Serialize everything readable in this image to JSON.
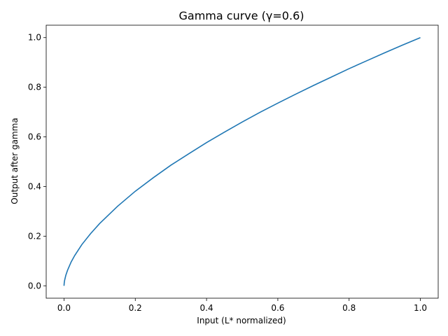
{
  "chart_data": {
    "type": "line",
    "title": "Gamma curve (γ=0.6)",
    "xlabel": "Input (L* normalized)",
    "ylabel": "Output after gamma",
    "xlim": [
      -0.05,
      1.05
    ],
    "ylim": [
      -0.05,
      1.05
    ],
    "x_ticks": [
      "0.0",
      "0.2",
      "0.4",
      "0.6",
      "0.8",
      "1.0"
    ],
    "y_ticks": [
      "0.0",
      "0.2",
      "0.4",
      "0.6",
      "0.8",
      "1.0"
    ],
    "grid": false,
    "series": [
      {
        "color": "#1f77b4",
        "x": [
          0,
          0.0005,
          0.001,
          0.002,
          0.005,
          0.01,
          0.02,
          0.03,
          0.05,
          0.075,
          0.1,
          0.15,
          0.2,
          0.25,
          0.3,
          0.35,
          0.4,
          0.45,
          0.5,
          0.55,
          0.6,
          0.65,
          0.7,
          0.75,
          0.8,
          0.85,
          0.9,
          0.95,
          1.0
        ],
        "y": [
          0,
          0.01,
          0.016,
          0.024,
          0.042,
          0.063,
          0.096,
          0.122,
          0.166,
          0.211,
          0.251,
          0.32,
          0.381,
          0.435,
          0.486,
          0.532,
          0.577,
          0.619,
          0.66,
          0.699,
          0.736,
          0.772,
          0.807,
          0.841,
          0.875,
          0.907,
          0.939,
          0.97,
          1.0
        ]
      }
    ]
  }
}
